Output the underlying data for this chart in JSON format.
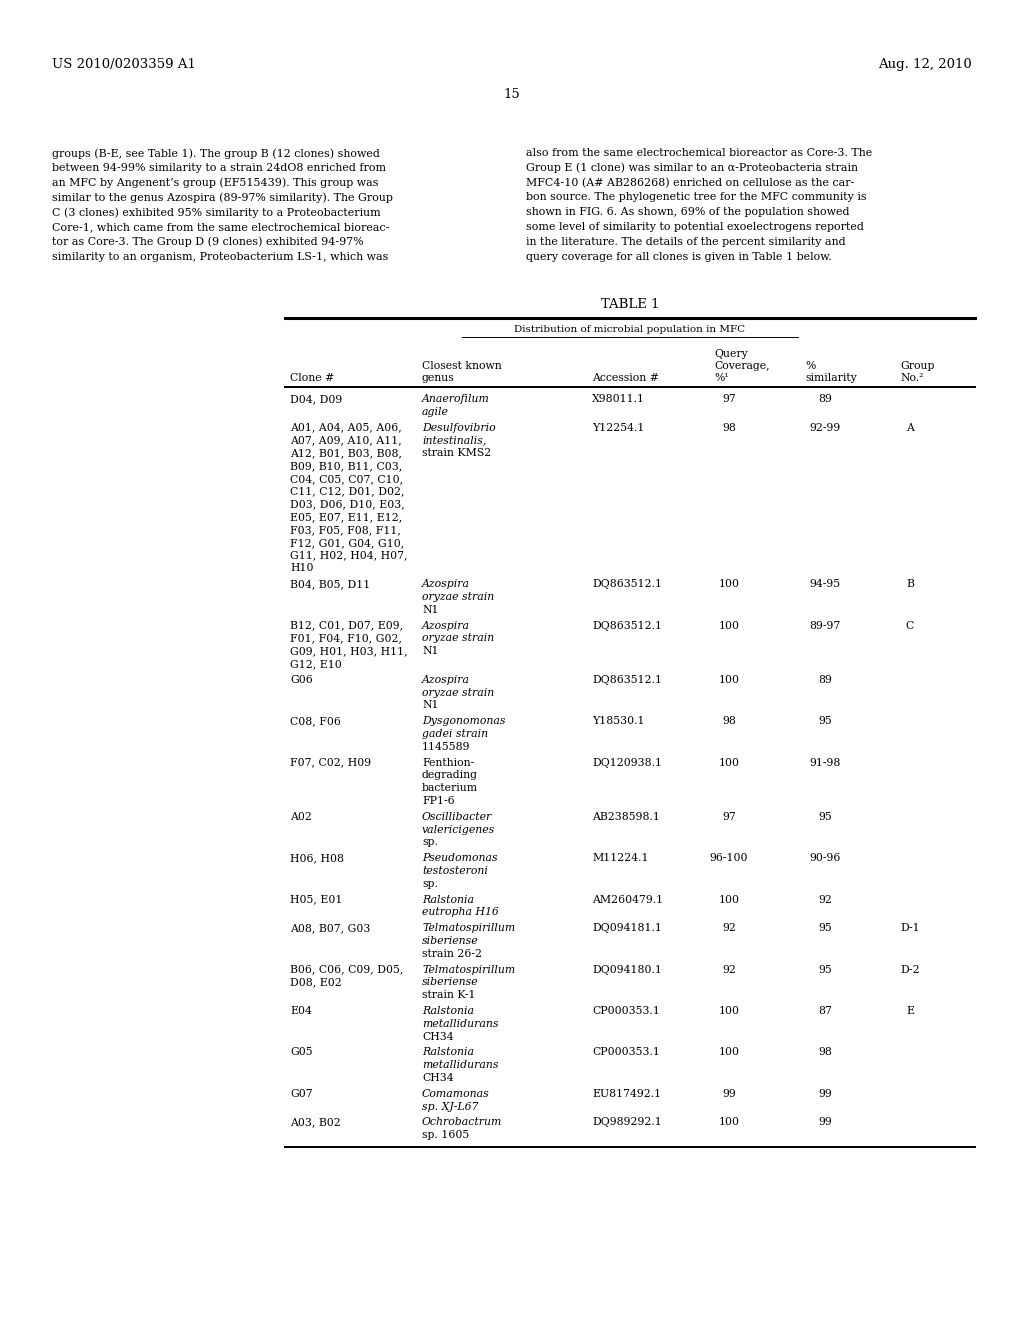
{
  "patent_number": "US 2010/0203359 A1",
  "date": "Aug. 12, 2010",
  "page_number": "15",
  "left_text": [
    "groups (B-E, see Table 1). The group B (12 clones) showed",
    "between 94-99% similarity to a strain 24dO8 enriched from",
    "an MFC by Angenent’s group (EF515439). This group was",
    "similar to the genus Azospira (89-97% similarity). The Group",
    "C (3 clones) exhibited 95% similarity to a Proteobacterium",
    "Core-1, which came from the same electrochemical bioreac-",
    "tor as Core-3. The Group D (9 clones) exhibited 94-97%",
    "similarity to an organism, Proteobacterium LS-1, which was"
  ],
  "right_text": [
    "also from the same electrochemical bioreactor as Core-3. The",
    "Group E (1 clone) was similar to an α-Proteobacteria strain",
    "MFC4-10 (A# AB286268) enriched on cellulose as the car-",
    "bon source. The phylogenetic tree for the MFC community is",
    "shown in FIG. 6. As shown, 69% of the population showed",
    "some level of similarity to potential exoelectrogens reported",
    "in the literature. The details of the percent similarity and",
    "query coverage for all clones is given in Table 1 below."
  ],
  "table_title": "TABLE 1",
  "table_subtitle": "Distribution of microbial population in MFC",
  "rows": [
    {
      "clone": "D04, D09",
      "genus": [
        "Anaerofilum",
        "agile"
      ],
      "genus_italic": [
        true,
        true
      ],
      "accession": "X98011.1",
      "coverage": "97",
      "similarity": "89",
      "group": ""
    },
    {
      "clone": "A01, A04, A05, A06,\nA07, A09, A10, A11,\nA12, B01, B03, B08,\nB09, B10, B11, C03,\nC04, C05, C07, C10,\nC11, C12, D01, D02,\nD03, D06, D10, E03,\nE05, E07, E11, E12,\nF03, F05, F08, F11,\nF12, G01, G04, G10,\nG11, H02, H04, H07,\nH10",
      "genus": [
        "Desulfovibrio",
        "intestinalis,",
        "strain KMS2"
      ],
      "genus_italic": [
        true,
        true,
        false
      ],
      "accession": "Y12254.1",
      "coverage": "98",
      "similarity": "92-99",
      "group": "A"
    },
    {
      "clone": "B04, B05, D11",
      "genus": [
        "Azospira",
        "oryzae strain",
        "N1"
      ],
      "genus_italic": [
        true,
        true,
        false
      ],
      "accession": "DQ863512.1",
      "coverage": "100",
      "similarity": "94-95",
      "group": "B"
    },
    {
      "clone": "B12, C01, D07, E09,\nF01, F04, F10, G02,\nG09, H01, H03, H11,\nG12, E10",
      "genus": [
        "Azospira",
        "oryzae strain",
        "N1"
      ],
      "genus_italic": [
        true,
        true,
        false
      ],
      "accession": "DQ863512.1",
      "coverage": "100",
      "similarity": "89-97",
      "group": "C"
    },
    {
      "clone": "G06",
      "genus": [
        "Azospira",
        "oryzae strain",
        "N1"
      ],
      "genus_italic": [
        true,
        true,
        false
      ],
      "accession": "DQ863512.1",
      "coverage": "100",
      "similarity": "89",
      "group": ""
    },
    {
      "clone": "C08, F06",
      "genus": [
        "Dysgonomonas",
        "gadei strain",
        "1145589"
      ],
      "genus_italic": [
        true,
        true,
        false
      ],
      "accession": "Y18530.1",
      "coverage": "98",
      "similarity": "95",
      "group": ""
    },
    {
      "clone": "F07, C02, H09",
      "genus": [
        "Fenthion-",
        "degrading",
        "bacterium",
        "FP1-6"
      ],
      "genus_italic": [
        false,
        false,
        false,
        false
      ],
      "accession": "DQ120938.1",
      "coverage": "100",
      "similarity": "91-98",
      "group": ""
    },
    {
      "clone": "A02",
      "genus": [
        "Oscillibacter",
        "valericigenes",
        "sp."
      ],
      "genus_italic": [
        true,
        true,
        false
      ],
      "accession": "AB238598.1",
      "coverage": "97",
      "similarity": "95",
      "group": ""
    },
    {
      "clone": "H06, H08",
      "genus": [
        "Pseudomonas",
        "testosteroni",
        "sp."
      ],
      "genus_italic": [
        true,
        true,
        false
      ],
      "accession": "M11224.1",
      "coverage": "96-100",
      "similarity": "90-96",
      "group": ""
    },
    {
      "clone": "H05, E01",
      "genus": [
        "Ralstonia",
        "eutropha H16"
      ],
      "genus_italic": [
        true,
        true
      ],
      "accession": "AM260479.1",
      "coverage": "100",
      "similarity": "92",
      "group": ""
    },
    {
      "clone": "A08, B07, G03",
      "genus": [
        "Telmatospirillum",
        "siberiense",
        "strain 26-2"
      ],
      "genus_italic": [
        true,
        true,
        false
      ],
      "accession": "DQ094181.1",
      "coverage": "92",
      "similarity": "95",
      "group": "D-1"
    },
    {
      "clone": "B06, C06, C09, D05,\nD08, E02",
      "genus": [
        "Telmatospirillum",
        "siberiense",
        "strain K-1"
      ],
      "genus_italic": [
        true,
        true,
        false
      ],
      "accession": "DQ094180.1",
      "coverage": "92",
      "similarity": "95",
      "group": "D-2"
    },
    {
      "clone": "E04",
      "genus": [
        "Ralstonia",
        "metallidurans",
        "CH34"
      ],
      "genus_italic": [
        true,
        true,
        false
      ],
      "accession": "CP000353.1",
      "coverage": "100",
      "similarity": "87",
      "group": "E"
    },
    {
      "clone": "G05",
      "genus": [
        "Ralstonia",
        "metallidurans",
        "CH34"
      ],
      "genus_italic": [
        true,
        true,
        false
      ],
      "accession": "CP000353.1",
      "coverage": "100",
      "similarity": "98",
      "group": ""
    },
    {
      "clone": "G07",
      "genus": [
        "Comamonas",
        "sp. XJ-L67"
      ],
      "genus_italic": [
        true,
        true
      ],
      "accession": "EU817492.1",
      "coverage": "99",
      "similarity": "99",
      "group": ""
    },
    {
      "clone": "A03, B02",
      "genus": [
        "Ochrobactrum",
        "sp. 1605"
      ],
      "genus_italic": [
        true,
        false
      ],
      "accession": "DQ989292.1",
      "coverage": "100",
      "similarity": "99",
      "group": ""
    }
  ]
}
